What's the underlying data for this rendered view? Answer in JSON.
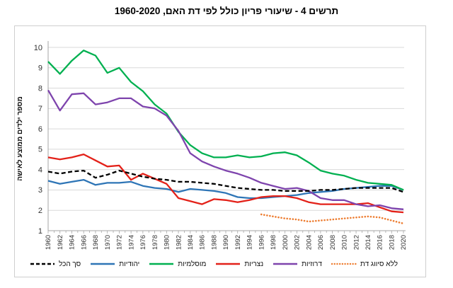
{
  "chart_data": {
    "type": "line",
    "title": "תרשים 4 - שיעורי פריון כולל לפי דת האם, 1960-2020",
    "ylabel": "מספר ילדים ממוצע לאישה",
    "xlabel": "",
    "xlim": [
      1960,
      2020
    ],
    "ylim": [
      1,
      10
    ],
    "y_ticks": [
      1,
      2,
      3,
      4,
      5,
      6,
      7,
      8,
      9,
      10
    ],
    "x_tick_label_interval": 2,
    "grid": "horizontal",
    "legend_position": "bottom",
    "x": [
      1960,
      1962,
      1964,
      1966,
      1968,
      1970,
      1972,
      1974,
      1976,
      1978,
      1980,
      1982,
      1984,
      1986,
      1988,
      1990,
      1992,
      1994,
      1996,
      1998,
      2000,
      2002,
      2004,
      2006,
      2008,
      2010,
      2012,
      2014,
      2016,
      2018,
      2020
    ],
    "series": [
      {
        "name": "סך הכל",
        "name_en": "total",
        "color": "#000000",
        "style": "dashed",
        "values": [
          3.9,
          3.8,
          3.9,
          3.95,
          3.6,
          3.75,
          3.95,
          3.8,
          3.65,
          3.55,
          3.5,
          3.4,
          3.4,
          3.35,
          3.3,
          3.2,
          3.1,
          3.05,
          3.0,
          3.0,
          2.95,
          2.95,
          2.95,
          3.0,
          3.0,
          3.05,
          3.1,
          3.1,
          3.1,
          3.1,
          2.9
        ]
      },
      {
        "name": "יהודיות",
        "name_en": "jewish",
        "color": "#2E75B6",
        "style": "solid",
        "values": [
          3.45,
          3.3,
          3.4,
          3.5,
          3.25,
          3.35,
          3.35,
          3.4,
          3.2,
          3.1,
          3.05,
          2.9,
          3.05,
          3.0,
          2.95,
          2.85,
          2.65,
          2.6,
          2.6,
          2.65,
          2.7,
          2.75,
          2.85,
          2.9,
          2.95,
          3.05,
          3.1,
          3.15,
          3.2,
          3.2,
          3.0
        ]
      },
      {
        "name": "מוסלמיות",
        "name_en": "muslim",
        "color": "#00B050",
        "style": "solid",
        "values": [
          9.3,
          8.7,
          9.35,
          9.85,
          9.6,
          8.75,
          9.0,
          8.3,
          7.85,
          7.2,
          6.75,
          5.85,
          5.2,
          4.8,
          4.6,
          4.6,
          4.7,
          4.6,
          4.65,
          4.8,
          4.85,
          4.7,
          4.35,
          3.95,
          3.8,
          3.7,
          3.5,
          3.35,
          3.3,
          3.25,
          3.0
        ]
      },
      {
        "name": "נצריות",
        "name_en": "christian",
        "color": "#E32119",
        "style": "solid",
        "values": [
          4.6,
          4.5,
          4.6,
          4.75,
          4.45,
          4.15,
          4.2,
          3.5,
          3.8,
          3.55,
          3.3,
          2.6,
          2.45,
          2.3,
          2.55,
          2.5,
          2.4,
          2.5,
          2.65,
          2.7,
          2.7,
          2.6,
          2.4,
          2.3,
          2.3,
          2.3,
          2.3,
          2.35,
          2.15,
          1.95,
          1.9
        ]
      },
      {
        "name": "דרוזיות",
        "name_en": "druze",
        "color": "#7E44AD",
        "style": "solid",
        "values": [
          7.9,
          6.9,
          7.7,
          7.75,
          7.2,
          7.3,
          7.5,
          7.5,
          7.1,
          7.0,
          6.65,
          5.9,
          4.8,
          4.4,
          4.15,
          3.95,
          3.8,
          3.6,
          3.35,
          3.2,
          3.05,
          3.1,
          2.95,
          2.6,
          2.5,
          2.5,
          2.3,
          2.2,
          2.25,
          2.1,
          2.05
        ]
      },
      {
        "name": "ללא סיווג דת",
        "name_en": "unclassified-religion",
        "color": "#ED7D31",
        "style": "dotted",
        "values": [
          null,
          null,
          null,
          null,
          null,
          null,
          null,
          null,
          null,
          null,
          null,
          null,
          null,
          null,
          null,
          null,
          null,
          null,
          1.8,
          1.7,
          1.6,
          1.55,
          1.45,
          1.5,
          1.55,
          1.6,
          1.65,
          1.7,
          1.65,
          1.5,
          1.35
        ]
      }
    ],
    "colors": {
      "gridline": "#D9D9D9",
      "axis": "#A6A6A6",
      "tick_text": "#333333"
    }
  }
}
